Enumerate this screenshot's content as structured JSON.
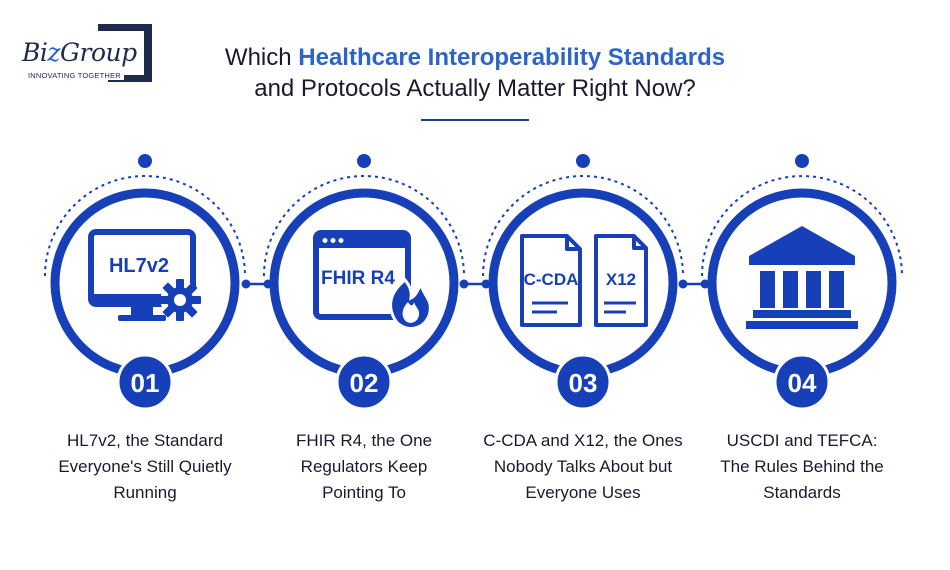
{
  "logo": {
    "brand_prefix": "Bi",
    "brand_z": "z",
    "brand_suffix": "Group",
    "tagline": "INNOVATING TOGETHER"
  },
  "title": {
    "line1_prefix": "Which ",
    "line1_highlight": "Healthcare Interoperability Standards",
    "line2": "and Protocols Actually Matter Right Now?"
  },
  "steps": [
    {
      "number": "01",
      "icon_label": "HL7v2",
      "icon": "monitor-gear-icon",
      "caption": "HL7v2, the Standard Everyone's Still Quietly Running"
    },
    {
      "number": "02",
      "icon_label": "FHIR R4",
      "icon": "browser-flame-icon",
      "caption": "FHIR R4, the One Regulators Keep Pointing To"
    },
    {
      "number": "03",
      "icon_label_a": "C-CDA",
      "icon_label_b": "X12",
      "icon": "documents-icon",
      "caption": "C-CDA and X12, the Ones Nobody Talks About but Everyone Uses"
    },
    {
      "number": "04",
      "icon": "government-building-icon",
      "caption": "USCDI and TEFCA: The Rules Behind the Standards"
    }
  ],
  "colors": {
    "primary": "#1740b8",
    "accent": "#2c64c8",
    "dark": "#1f2a4d",
    "text": "#1a1a2e"
  }
}
